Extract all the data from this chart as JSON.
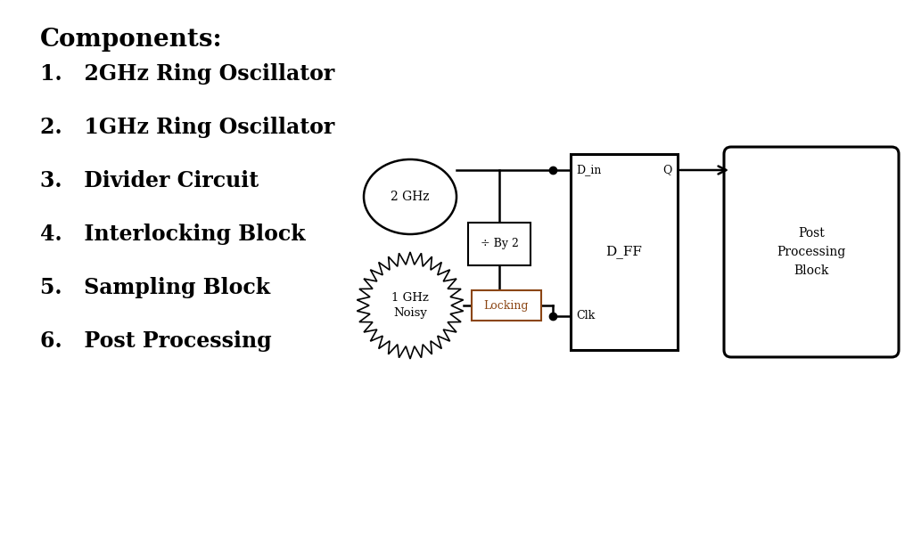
{
  "bg_color": "#ffffff",
  "border_color": "#333333",
  "title": "Components:",
  "items": [
    "1.   2GHz Ring Oscillator",
    "2.   1GHz Ring Oscillator",
    "3.   Divider Circuit",
    "4.   Interlocking Block",
    "5.   Sampling Block",
    "6.   Post Processing"
  ],
  "osc2_label": "2 GHz",
  "osc1_label": "1 GHz\nNoisy",
  "div_label": "÷ By 2",
  "lock_label": "Locking",
  "dff_label": "D_FF",
  "dff_din": "D_in",
  "dff_q": "Q",
  "dff_clk": "Clk",
  "post_label": "Post\nProcessing\nBlock",
  "lock_color": "#8B4513",
  "text_color": "#000000",
  "font_size_title": 20,
  "font_size_items": 17,
  "font_size_diagram": 9
}
